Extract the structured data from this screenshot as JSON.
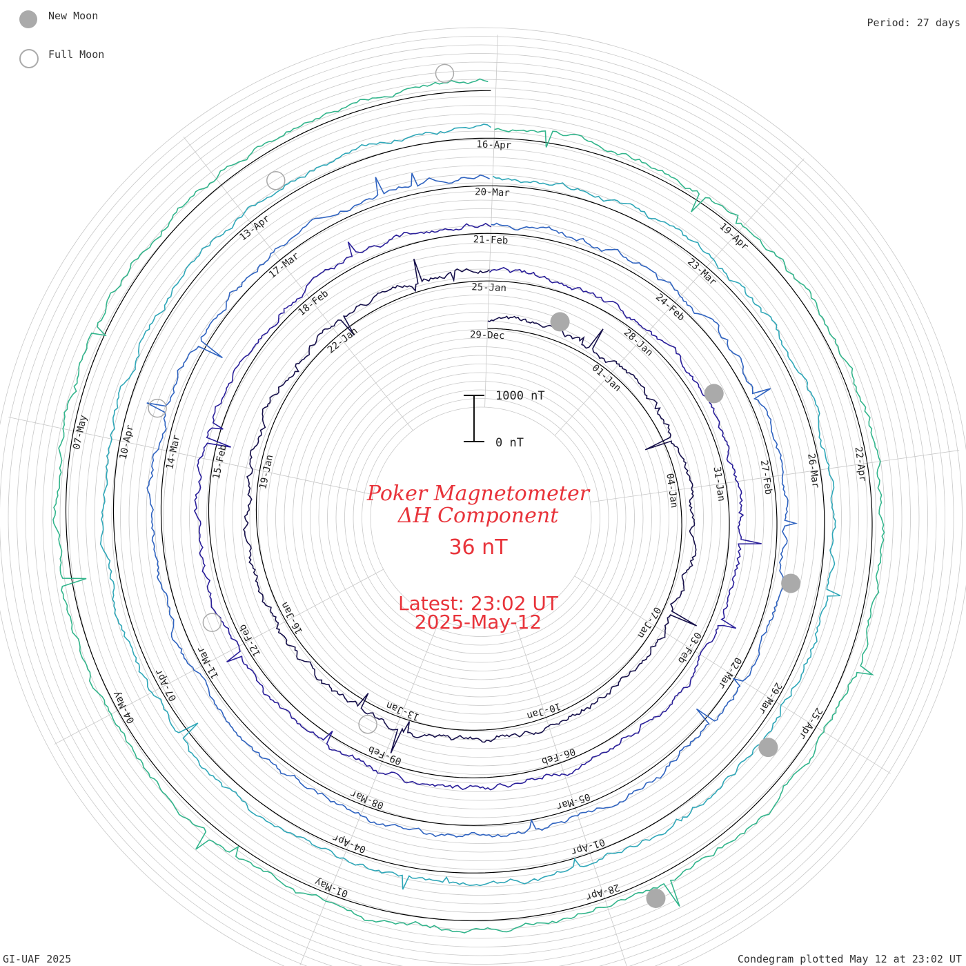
{
  "legend": {
    "new_moon_label": "New Moon",
    "full_moon_label": "Full Moon",
    "new_moon_color": "#aaaaaa",
    "full_moon_color": "#aaaaaa"
  },
  "period_label": "Period: 27 days",
  "footer_left": "GI-UAF 2025",
  "footer_right": "Condegram plotted May 12 at 23:02 UT",
  "scale_bar": {
    "top_label": "1000 nT",
    "bottom_label": "0 nT"
  },
  "center": {
    "title_line1": "Poker Magnetometer",
    "title_line2": "ΔH Component",
    "value": "36 nT",
    "latest_label": "Latest: 23:02 UT",
    "latest_date": "2025-May-12",
    "text_color": "#e8333a"
  },
  "chart_data": {
    "type": "condegram spiral (polar time series)",
    "period_days": 27,
    "units": "nT",
    "scale_bar_nT": [
      0,
      1000
    ],
    "latest_value_nT": 36,
    "start_date": "2024-12-29",
    "end_date": "2025-05-12",
    "date_labels": [
      "29-Dec",
      "01-Jan",
      "04-Jan",
      "07-Jan",
      "10-Jan",
      "13-Jan",
      "16-Jan",
      "19-Jan",
      "22-Jan",
      "25-Jan",
      "28-Jan",
      "31-Jan",
      "03-Feb",
      "06-Feb",
      "09-Feb",
      "12-Feb",
      "15-Feb",
      "18-Feb",
      "21-Feb",
      "24-Feb",
      "27-Feb",
      "02-Mar",
      "05-Mar",
      "08-Mar",
      "11-Mar",
      "14-Mar",
      "17-Mar",
      "20-Mar",
      "23-Mar",
      "26-Mar",
      "29-Mar",
      "01-Apr",
      "04-Apr",
      "07-Apr",
      "10-Apr",
      "13-Apr",
      "16-Apr",
      "19-Apr",
      "22-Apr",
      "25-Apr",
      "28-Apr",
      "01-May",
      "04-May",
      "07-May"
    ],
    "new_moons": [
      "2024-12-30",
      "2025-01-29",
      "2025-02-28",
      "2025-03-29",
      "2025-04-27"
    ],
    "full_moons": [
      "2025-01-13",
      "2025-02-12",
      "2025-03-14",
      "2025-04-13",
      "2025-05-12"
    ],
    "ring_colors": [
      "#16104a",
      "#2a1f9a",
      "#2f63c0",
      "#2fa7b8",
      "#33b58c",
      "#5cc03c",
      "#9cbc2a",
      "#c2a420",
      "#c8701a",
      "#b8220e"
    ]
  }
}
